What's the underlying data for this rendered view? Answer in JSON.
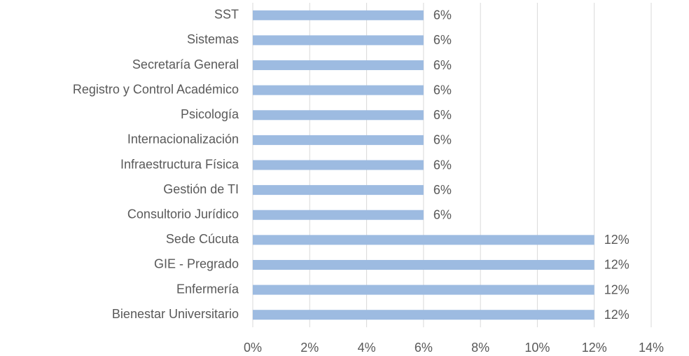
{
  "chart_data": {
    "type": "bar",
    "orientation": "horizontal",
    "categories": [
      "SST",
      "Sistemas",
      "Secretaría General",
      "Registro y Control Académico",
      "Psicología",
      "Internacionalización",
      "Infraestructura Física",
      "Gestión de TI",
      "Consultorio Jurídico",
      "Sede Cúcuta",
      "GIE - Pregrado",
      "Enfermería",
      "Bienestar Universitario"
    ],
    "values": [
      6,
      6,
      6,
      6,
      6,
      6,
      6,
      6,
      6,
      12,
      12,
      12,
      12
    ],
    "value_labels": [
      "6%",
      "6%",
      "6%",
      "6%",
      "6%",
      "6%",
      "6%",
      "6%",
      "6%",
      "12%",
      "12%",
      "12%",
      "12%"
    ],
    "color": "#9dbbe1",
    "xlim": [
      0,
      14
    ],
    "xticks": [
      {
        "value": 0,
        "label": "0%"
      },
      {
        "value": 2,
        "label": "2%"
      },
      {
        "value": 4,
        "label": "4%"
      },
      {
        "value": 6,
        "label": "6%"
      },
      {
        "value": 8,
        "label": "8%"
      },
      {
        "value": 10,
        "label": "10%"
      },
      {
        "value": 12,
        "label": "12%"
      },
      {
        "value": 14,
        "label": "14%"
      }
    ],
    "grid": true
  }
}
